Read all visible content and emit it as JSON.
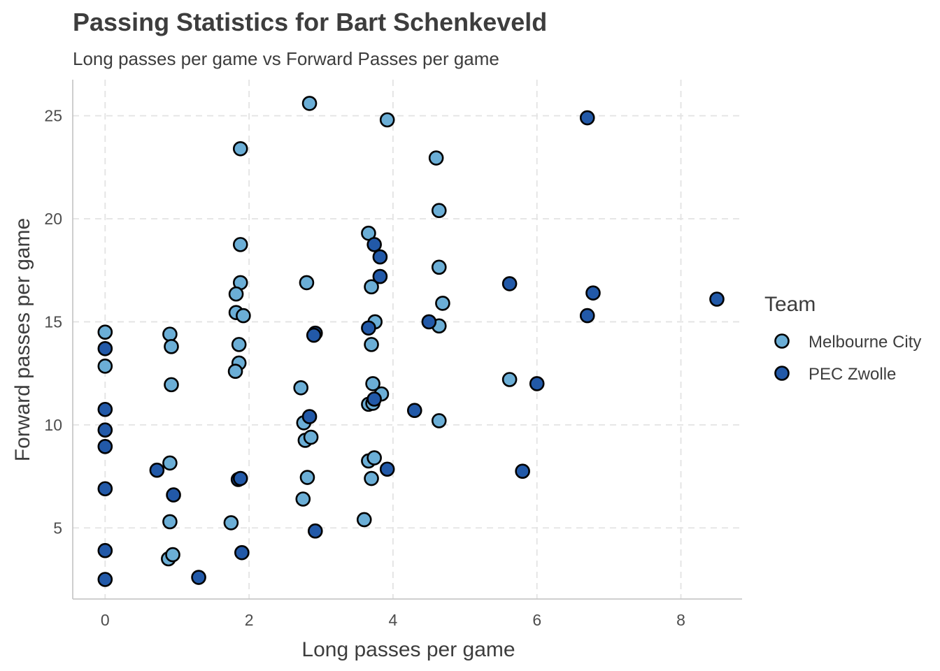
{
  "chart_data": {
    "type": "scatter",
    "title": "Passing Statistics for Bart Schenkeveld",
    "subtitle": "Long passes per game vs Forward Passes per game",
    "xlabel": "Long passes per game",
    "ylabel": "Forward passes per game",
    "xlim": [
      -0.45,
      8.85
    ],
    "ylim": [
      1.55,
      26.75
    ],
    "x_ticks": [
      0,
      2,
      4,
      6,
      8
    ],
    "y_ticks": [
      5,
      10,
      15,
      20,
      25
    ],
    "grid": true,
    "legend": {
      "title": "Team",
      "position": "right"
    },
    "series": [
      {
        "name": "Melbourne City",
        "color": "#6baed6",
        "points": [
          [
            0,
            14.5
          ],
          [
            0,
            12.85
          ],
          [
            0.9,
            14.4
          ],
          [
            0.92,
            13.8
          ],
          [
            0.92,
            11.95
          ],
          [
            0.9,
            8.15
          ],
          [
            0.9,
            5.3
          ],
          [
            0.88,
            3.5
          ],
          [
            0.94,
            3.7
          ],
          [
            1.75,
            5.25
          ],
          [
            1.88,
            23.4
          ],
          [
            1.88,
            18.75
          ],
          [
            1.88,
            16.9
          ],
          [
            1.82,
            16.35
          ],
          [
            1.82,
            15.45
          ],
          [
            1.92,
            15.3
          ],
          [
            1.86,
            13.9
          ],
          [
            1.86,
            13.0
          ],
          [
            1.81,
            12.6
          ],
          [
            2.84,
            25.6
          ],
          [
            2.8,
            16.9
          ],
          [
            2.72,
            11.8
          ],
          [
            2.76,
            10.1
          ],
          [
            2.78,
            9.25
          ],
          [
            2.86,
            9.4
          ],
          [
            2.81,
            7.45
          ],
          [
            2.75,
            6.4
          ],
          [
            3.92,
            24.8
          ],
          [
            3.66,
            19.3
          ],
          [
            3.7,
            16.7
          ],
          [
            3.75,
            15.0
          ],
          [
            3.7,
            13.9
          ],
          [
            3.72,
            12.0
          ],
          [
            3.66,
            11.0
          ],
          [
            3.72,
            11.05
          ],
          [
            3.84,
            11.5
          ],
          [
            3.66,
            8.25
          ],
          [
            3.74,
            8.4
          ],
          [
            3.7,
            7.4
          ],
          [
            3.6,
            5.4
          ],
          [
            4.6,
            22.95
          ],
          [
            4.64,
            20.4
          ],
          [
            4.64,
            17.65
          ],
          [
            4.69,
            15.9
          ],
          [
            4.64,
            14.8
          ],
          [
            4.64,
            10.2
          ],
          [
            5.62,
            12.2
          ]
        ]
      },
      {
        "name": "PEC Zwolle",
        "color": "#2259a8",
        "points": [
          [
            0,
            13.7
          ],
          [
            0,
            10.75
          ],
          [
            0,
            9.75
          ],
          [
            0,
            8.95
          ],
          [
            0,
            6.9
          ],
          [
            0,
            3.9
          ],
          [
            0,
            2.5
          ],
          [
            0.72,
            7.8
          ],
          [
            0.95,
            6.6
          ],
          [
            1.3,
            2.6
          ],
          [
            1.85,
            7.35
          ],
          [
            1.88,
            7.4
          ],
          [
            1.9,
            3.8
          ],
          [
            2.84,
            10.4
          ],
          [
            2.92,
            14.45
          ],
          [
            2.9,
            14.35
          ],
          [
            2.92,
            4.85
          ],
          [
            3.66,
            14.7
          ],
          [
            3.74,
            18.75
          ],
          [
            3.82,
            18.15
          ],
          [
            3.82,
            17.2
          ],
          [
            3.74,
            11.25
          ],
          [
            3.92,
            7.85
          ],
          [
            4.3,
            10.7
          ],
          [
            4.5,
            15.0
          ],
          [
            5.62,
            16.85
          ],
          [
            6.0,
            12.0
          ],
          [
            5.8,
            7.75
          ],
          [
            6.7,
            24.9
          ],
          [
            6.78,
            16.4
          ],
          [
            6.7,
            15.3
          ],
          [
            8.5,
            16.1
          ]
        ]
      }
    ]
  }
}
